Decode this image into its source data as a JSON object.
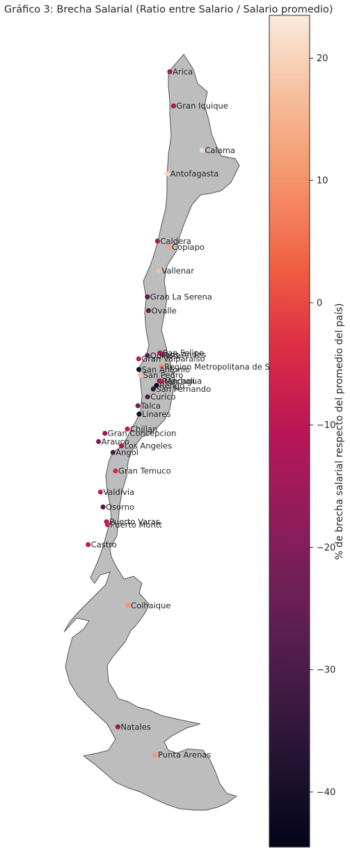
{
  "chart_data": {
    "type": "scatter",
    "title": "Gráfico 3: Brecha Salarial (Ratio entre Salario / Salario promedio)",
    "colorbar": {
      "label": "% de brecha salarial respecto del promedio del país)",
      "range": [
        -44.5,
        23.5
      ],
      "ticks": [
        20,
        10,
        0,
        -10,
        -20,
        -30,
        -40
      ],
      "colormap": "rocket"
    },
    "points": [
      {
        "name": "Arica",
        "lon": -70.3,
        "lat": -18.47,
        "value": -17
      },
      {
        "name": "Gran Iquique",
        "lon": -70.14,
        "lat": -20.21,
        "value": -13
      },
      {
        "name": "Calama",
        "lon": -68.93,
        "lat": -22.46,
        "value": 21
      },
      {
        "name": "Antofagasta",
        "lon": -70.4,
        "lat": -23.65,
        "value": 20
      },
      {
        "name": "Caldera",
        "lon": -70.82,
        "lat": -27.07,
        "value": -13
      },
      {
        "name": "Copiapo",
        "lon": -70.33,
        "lat": -27.37,
        "value": 13
      },
      {
        "name": "Vallenar",
        "lon": -70.76,
        "lat": -28.58,
        "value": 17
      },
      {
        "name": "Gran La Serena",
        "lon": -71.25,
        "lat": -29.9,
        "value": -28
      },
      {
        "name": "Ovalle",
        "lon": -71.2,
        "lat": -30.6,
        "value": -27
      },
      {
        "name": "San Felipe",
        "lon": -70.72,
        "lat": -32.75,
        "value": -12
      },
      {
        "name": "Los Andes",
        "lon": -70.6,
        "lat": -32.83,
        "value": -16
      },
      {
        "name": "Quillota",
        "lon": -71.25,
        "lat": -32.88,
        "value": -27
      },
      {
        "name": "Gran Valparaiso",
        "lon": -71.62,
        "lat": -33.05,
        "value": -8
      },
      {
        "name": "Region Metropolitana de Santiago",
        "lon": -70.65,
        "lat": -33.45,
        "value": 8
      },
      {
        "name": "San Antonio",
        "lon": -71.61,
        "lat": -33.59,
        "value": -40
      },
      {
        "name": "San Pedro",
        "lon": -71.55,
        "lat": -33.88,
        "value": 18
      },
      {
        "name": "Rancagua",
        "lon": -70.74,
        "lat": -34.17,
        "value": -21
      },
      {
        "name": "Machali",
        "lon": -70.65,
        "lat": -34.18,
        "value": -8
      },
      {
        "name": "Rengo",
        "lon": -70.86,
        "lat": -34.4,
        "value": -43
      },
      {
        "name": "San Fernando",
        "lon": -71.0,
        "lat": -34.58,
        "value": -35
      },
      {
        "name": "Curico",
        "lon": -71.24,
        "lat": -34.98,
        "value": -29
      },
      {
        "name": "Talca",
        "lon": -71.65,
        "lat": -35.43,
        "value": -22
      },
      {
        "name": "Linares",
        "lon": -71.6,
        "lat": -35.85,
        "value": -42
      },
      {
        "name": "Chillan",
        "lon": -72.1,
        "lat": -36.61,
        "value": -9
      },
      {
        "name": "Arauco",
        "lon": -73.32,
        "lat": -37.25,
        "value": -20
      },
      {
        "name": "Gran Concepcion",
        "lon": -73.05,
        "lat": -36.83,
        "value": -16
      },
      {
        "name": "Los Angeles",
        "lon": -72.35,
        "lat": -37.47,
        "value": -12
      },
      {
        "name": "Angol",
        "lon": -72.71,
        "lat": -37.8,
        "value": -30
      },
      {
        "name": "Gran Temuco",
        "lon": -72.6,
        "lat": -38.74,
        "value": -5
      },
      {
        "name": "Valdivia",
        "lon": -73.24,
        "lat": -39.81,
        "value": -8
      },
      {
        "name": "Osorno",
        "lon": -73.13,
        "lat": -40.57,
        "value": -29
      },
      {
        "name": "Puerto Varas",
        "lon": -72.98,
        "lat": -41.32,
        "value": -12
      },
      {
        "name": "Puerto Montt",
        "lon": -72.94,
        "lat": -41.47,
        "value": -7
      },
      {
        "name": "Castro",
        "lon": -73.76,
        "lat": -42.48,
        "value": -9
      },
      {
        "name": "Coihaique",
        "lon": -72.07,
        "lat": -45.57,
        "value": 10
      },
      {
        "name": "Natales",
        "lon": -72.5,
        "lat": -51.73,
        "value": -19
      },
      {
        "name": "Punta Arenas",
        "lon": -70.92,
        "lat": -53.16,
        "value": 11
      }
    ]
  }
}
